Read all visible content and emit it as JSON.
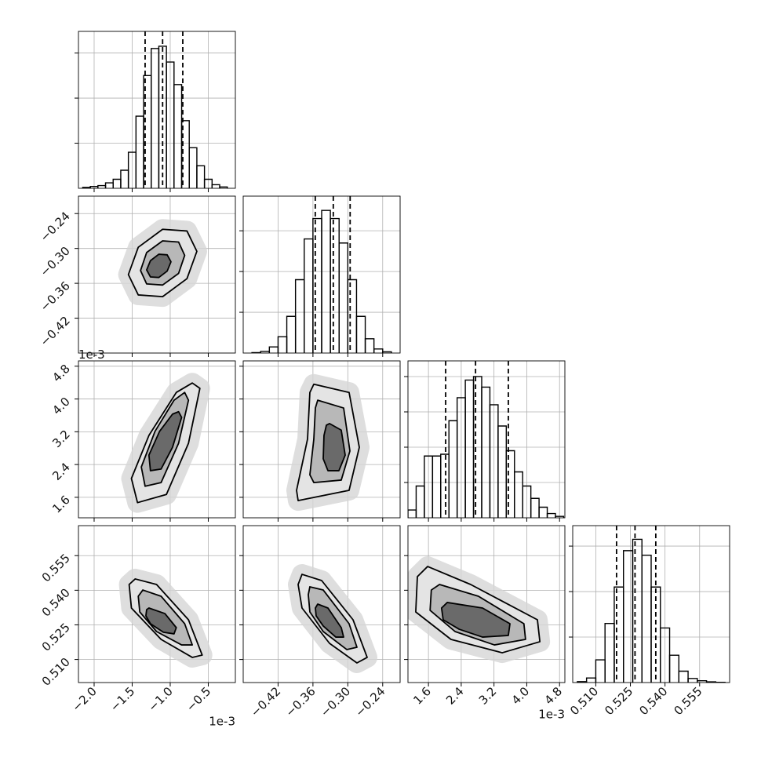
{
  "chart_data": {
    "type": "corner",
    "parameters": [
      {
        "lim": [
          -2.206,
          -0.144
        ],
        "ticks": [
          {
            "value": -2.0,
            "label": "−2.0"
          },
          {
            "value": -1.5,
            "label": "−1.5"
          },
          {
            "value": -1.0,
            "label": "−1.0"
          },
          {
            "value": -0.5,
            "label": "−0.5"
          }
        ],
        "offset_label": "1e-3",
        "bins": [
          -2.15,
          -2.05,
          -1.95,
          -1.85,
          -1.75,
          -1.65,
          -1.55,
          -1.45,
          -1.35,
          -1.25,
          -1.15,
          -1.05,
          -0.95,
          -0.85,
          -0.75,
          -0.65,
          -0.55,
          -0.45,
          -0.35,
          -0.25
        ],
        "counts": [
          20,
          40,
          60,
          120,
          200,
          400,
          800,
          1600,
          2500,
          3100,
          3150,
          2800,
          2300,
          1500,
          900,
          500,
          200,
          80,
          30
        ],
        "count_lim": [
          0,
          3480
        ],
        "count_ticks": [
          1000,
          2000,
          3000
        ],
        "quantiles": [
          -1.33,
          -1.1,
          -0.835
        ]
      },
      {
        "lim": [
          -0.48,
          -0.21
        ],
        "ticks": [
          {
            "value": -0.42,
            "label": "−0.42"
          },
          {
            "value": -0.36,
            "label": "−0.36"
          },
          {
            "value": -0.3,
            "label": "−0.30"
          },
          {
            "value": -0.24,
            "label": "−0.24"
          }
        ],
        "bins": [
          -0.465,
          -0.45,
          -0.435,
          -0.42,
          -0.405,
          -0.39,
          -0.375,
          -0.36,
          -0.345,
          -0.33,
          -0.315,
          -0.3,
          -0.285,
          -0.27,
          -0.255,
          -0.24,
          -0.225
        ],
        "counts": [
          10,
          40,
          150,
          400,
          900,
          1800,
          2800,
          3300,
          3500,
          3300,
          2700,
          1800,
          900,
          350,
          100,
          30
        ],
        "count_lim": [
          0,
          3850
        ],
        "count_ticks": [
          1000,
          2000,
          3000
        ],
        "quantiles": [
          -0.356,
          -0.325,
          -0.296
        ]
      },
      {
        "lim": [
          1.1,
          4.93
        ],
        "ticks": [
          1.6,
          2.4,
          3.2,
          {
            "value": 4.0,
            "label": "4.0"
          },
          4.8
        ],
        "offset_label": "1e-3",
        "bins": [
          1.1,
          1.3,
          1.5,
          1.7,
          1.9,
          2.1,
          2.3,
          2.5,
          2.7,
          2.9,
          3.1,
          3.3,
          3.5,
          3.7,
          3.9,
          4.1,
          4.3,
          4.5,
          4.7,
          4.9
        ],
        "counts": [
          220,
          900,
          1750,
          1750,
          1800,
          2750,
          3400,
          3900,
          4000,
          3700,
          3200,
          2600,
          1900,
          1300,
          900,
          550,
          300,
          120,
          40
        ],
        "count_lim": [
          0,
          4444
        ],
        "count_ticks": [
          1000,
          2000,
          3000,
          4000
        ],
        "quantiles": [
          2.02,
          2.75,
          3.55
        ]
      },
      {
        "lim": [
          0.5,
          0.568
        ],
        "ticks": [
          {
            "value": 0.51,
            "label": "0.510"
          },
          {
            "value": 0.525,
            "label": "0.525"
          },
          {
            "value": 0.54,
            "label": "0.540"
          },
          {
            "value": 0.555,
            "label": "0.555"
          }
        ],
        "bins": [
          0.502,
          0.506,
          0.51,
          0.514,
          0.518,
          0.522,
          0.526,
          0.53,
          0.534,
          0.538,
          0.542,
          0.546,
          0.55,
          0.554,
          0.558,
          0.562,
          0.566
        ],
        "counts": [
          20,
          100,
          500,
          1300,
          2100,
          2900,
          3150,
          2800,
          2100,
          1200,
          600,
          250,
          90,
          40,
          15,
          5
        ],
        "count_lim": [
          0,
          3450
        ],
        "count_ticks": [
          1000,
          2000,
          3000
        ],
        "quantiles": [
          0.519,
          0.527,
          0.536
        ]
      }
    ],
    "pairs": [
      {
        "contours": [
          {
            "x": [
              -0.65,
              -0.78,
              -1.1,
              -1.42,
              -1.55,
              -1.42,
              -1.1,
              -0.78
            ],
            "y": [
              -0.305,
              -0.27,
              -0.267,
              -0.298,
              -0.345,
              -0.38,
              -0.383,
              -0.352
            ]
          },
          {
            "x": [
              -0.81,
              -0.89,
              -1.1,
              -1.31,
              -1.39,
              -1.31,
              -1.1,
              -0.89
            ],
            "y": [
              -0.312,
              -0.289,
              -0.287,
              -0.307,
              -0.338,
              -0.361,
              -0.363,
              -0.343
            ]
          },
          {
            "x": [
              -0.99,
              -1.04,
              -1.15,
              -1.26,
              -1.31,
              -1.26,
              -1.15,
              -1.04
            ],
            "y": [
              -0.323,
              -0.311,
              -0.31,
              -0.321,
              -0.337,
              -0.349,
              -0.35,
              -0.339
            ]
          }
        ]
      },
      {
        "contours": [
          {
            "x": [
              -0.61,
              -0.76,
              -1.05,
              -1.43,
              -1.51,
              -1.28,
              -0.92,
              -0.71
            ],
            "y": [
              4.26,
              2.92,
              1.67,
              1.47,
              2.06,
              3.11,
              4.16,
              4.39
            ]
          },
          {
            "x": [
              -0.76,
              -0.89,
              -1.12,
              -1.33,
              -1.38,
              -1.2,
              -0.95,
              -0.81
            ],
            "y": [
              3.97,
              2.92,
              1.96,
              1.87,
              2.34,
              3.21,
              3.97,
              4.16
            ]
          },
          {
            "x": [
              -0.85,
              -0.97,
              -1.12,
              -1.26,
              -1.28,
              -1.14,
              -0.97,
              -0.89
            ],
            "y": [
              3.55,
              2.82,
              2.29,
              2.25,
              2.63,
              3.21,
              3.63,
              3.69
            ]
          }
        ]
      },
      {
        "contours": [
          {
            "x": [
              -0.3585,
              -0.2978,
              -0.2802,
              -0.2978,
              -0.3855,
              -0.3882,
              -0.3693,
              -0.3653
            ],
            "y": [
              4.36,
              4.16,
              2.82,
              1.77,
              1.52,
              1.77,
              3.02,
              4.16
            ]
          },
          {
            "x": [
              -0.3518,
              -0.3072,
              -0.2964,
              -0.3113,
              -0.3585,
              -0.3653,
              -0.3585,
              -0.3558
            ],
            "y": [
              3.97,
              3.78,
              2.73,
              2.02,
              1.96,
              2.15,
              3.02,
              3.78
            ]
          },
          {
            "x": [
              -0.3315,
              -0.3113,
              -0.3045,
              -0.3153,
              -0.3342,
              -0.3423,
              -0.341,
              -0.3369
            ],
            "y": [
              3.4,
              3.24,
              2.63,
              2.25,
              2.25,
              2.54,
              3.11,
              3.36
            ]
          }
        ]
      },
      {
        "contours": [
          {
            "x": [
              -1.46,
              -1.18,
              -0.76,
              -0.58,
              -0.71,
              -1.12,
              -1.51,
              -1.54
            ],
            "y": [
              0.5449,
              0.5425,
              0.5272,
              0.5119,
              0.5109,
              0.5187,
              0.5323,
              0.5425
            ]
          },
          {
            "x": [
              -1.36,
              -1.12,
              -0.81,
              -0.71,
              -0.85,
              -1.18,
              -1.4,
              -1.42
            ],
            "y": [
              0.5401,
              0.5374,
              0.5255,
              0.5163,
              0.5163,
              0.5221,
              0.5306,
              0.5374
            ]
          },
          {
            "x": [
              -1.28,
              -1.07,
              -0.92,
              -0.95,
              -1.09,
              -1.26,
              -1.32,
              -1.31
            ],
            "y": [
              0.5323,
              0.5299,
              0.5238,
              0.5211,
              0.5218,
              0.5255,
              0.5289,
              0.5316
            ]
          }
        ]
      },
      {
        "contours": [
          {
            "x": [
              -0.3788,
              -0.345,
              -0.291,
              -0.2667,
              -0.2843,
              -0.3315,
              -0.3788,
              -0.3855
            ],
            "y": [
              0.5469,
              0.5442,
              0.5272,
              0.5109,
              0.5085,
              0.517,
              0.5323,
              0.5425
            ]
          },
          {
            "x": [
              -0.3653,
              -0.3423,
              -0.2978,
              -0.2843,
              -0.3018,
              -0.3423,
              -0.3653,
              -0.368
            ],
            "y": [
              0.5415,
              0.5401,
              0.5255,
              0.5153,
              0.5143,
              0.5221,
              0.5306,
              0.5381
            ]
          },
          {
            "x": [
              -0.3518,
              -0.3342,
              -0.3113,
              -0.3072,
              -0.3207,
              -0.3423,
              -0.3545,
              -0.3558
            ],
            "y": [
              0.534,
              0.5323,
              0.5238,
              0.5197,
              0.5197,
              0.5245,
              0.5289,
              0.5323
            ]
          }
        ]
      },
      {
        "contours": [
          {
            "x": [
              1.58,
              2.63,
              4.26,
              4.32,
              3.4,
              2.15,
              1.29,
              1.33
            ],
            "y": [
              0.5503,
              0.5425,
              0.5272,
              0.5177,
              0.5129,
              0.5187,
              0.5306,
              0.5459
            ]
          },
          {
            "x": [
              1.87,
              2.82,
              3.93,
              3.97,
              3.21,
              2.25,
              1.64,
              1.67
            ],
            "y": [
              0.5425,
              0.5374,
              0.5255,
              0.5187,
              0.5163,
              0.5221,
              0.5313,
              0.5401
            ]
          },
          {
            "x": [
              2.06,
              2.92,
              3.59,
              3.55,
              2.92,
              2.35,
              1.96,
              1.92
            ],
            "y": [
              0.5347,
              0.5323,
              0.5255,
              0.5204,
              0.5197,
              0.5231,
              0.5272,
              0.5323
            ]
          }
        ]
      }
    ]
  }
}
